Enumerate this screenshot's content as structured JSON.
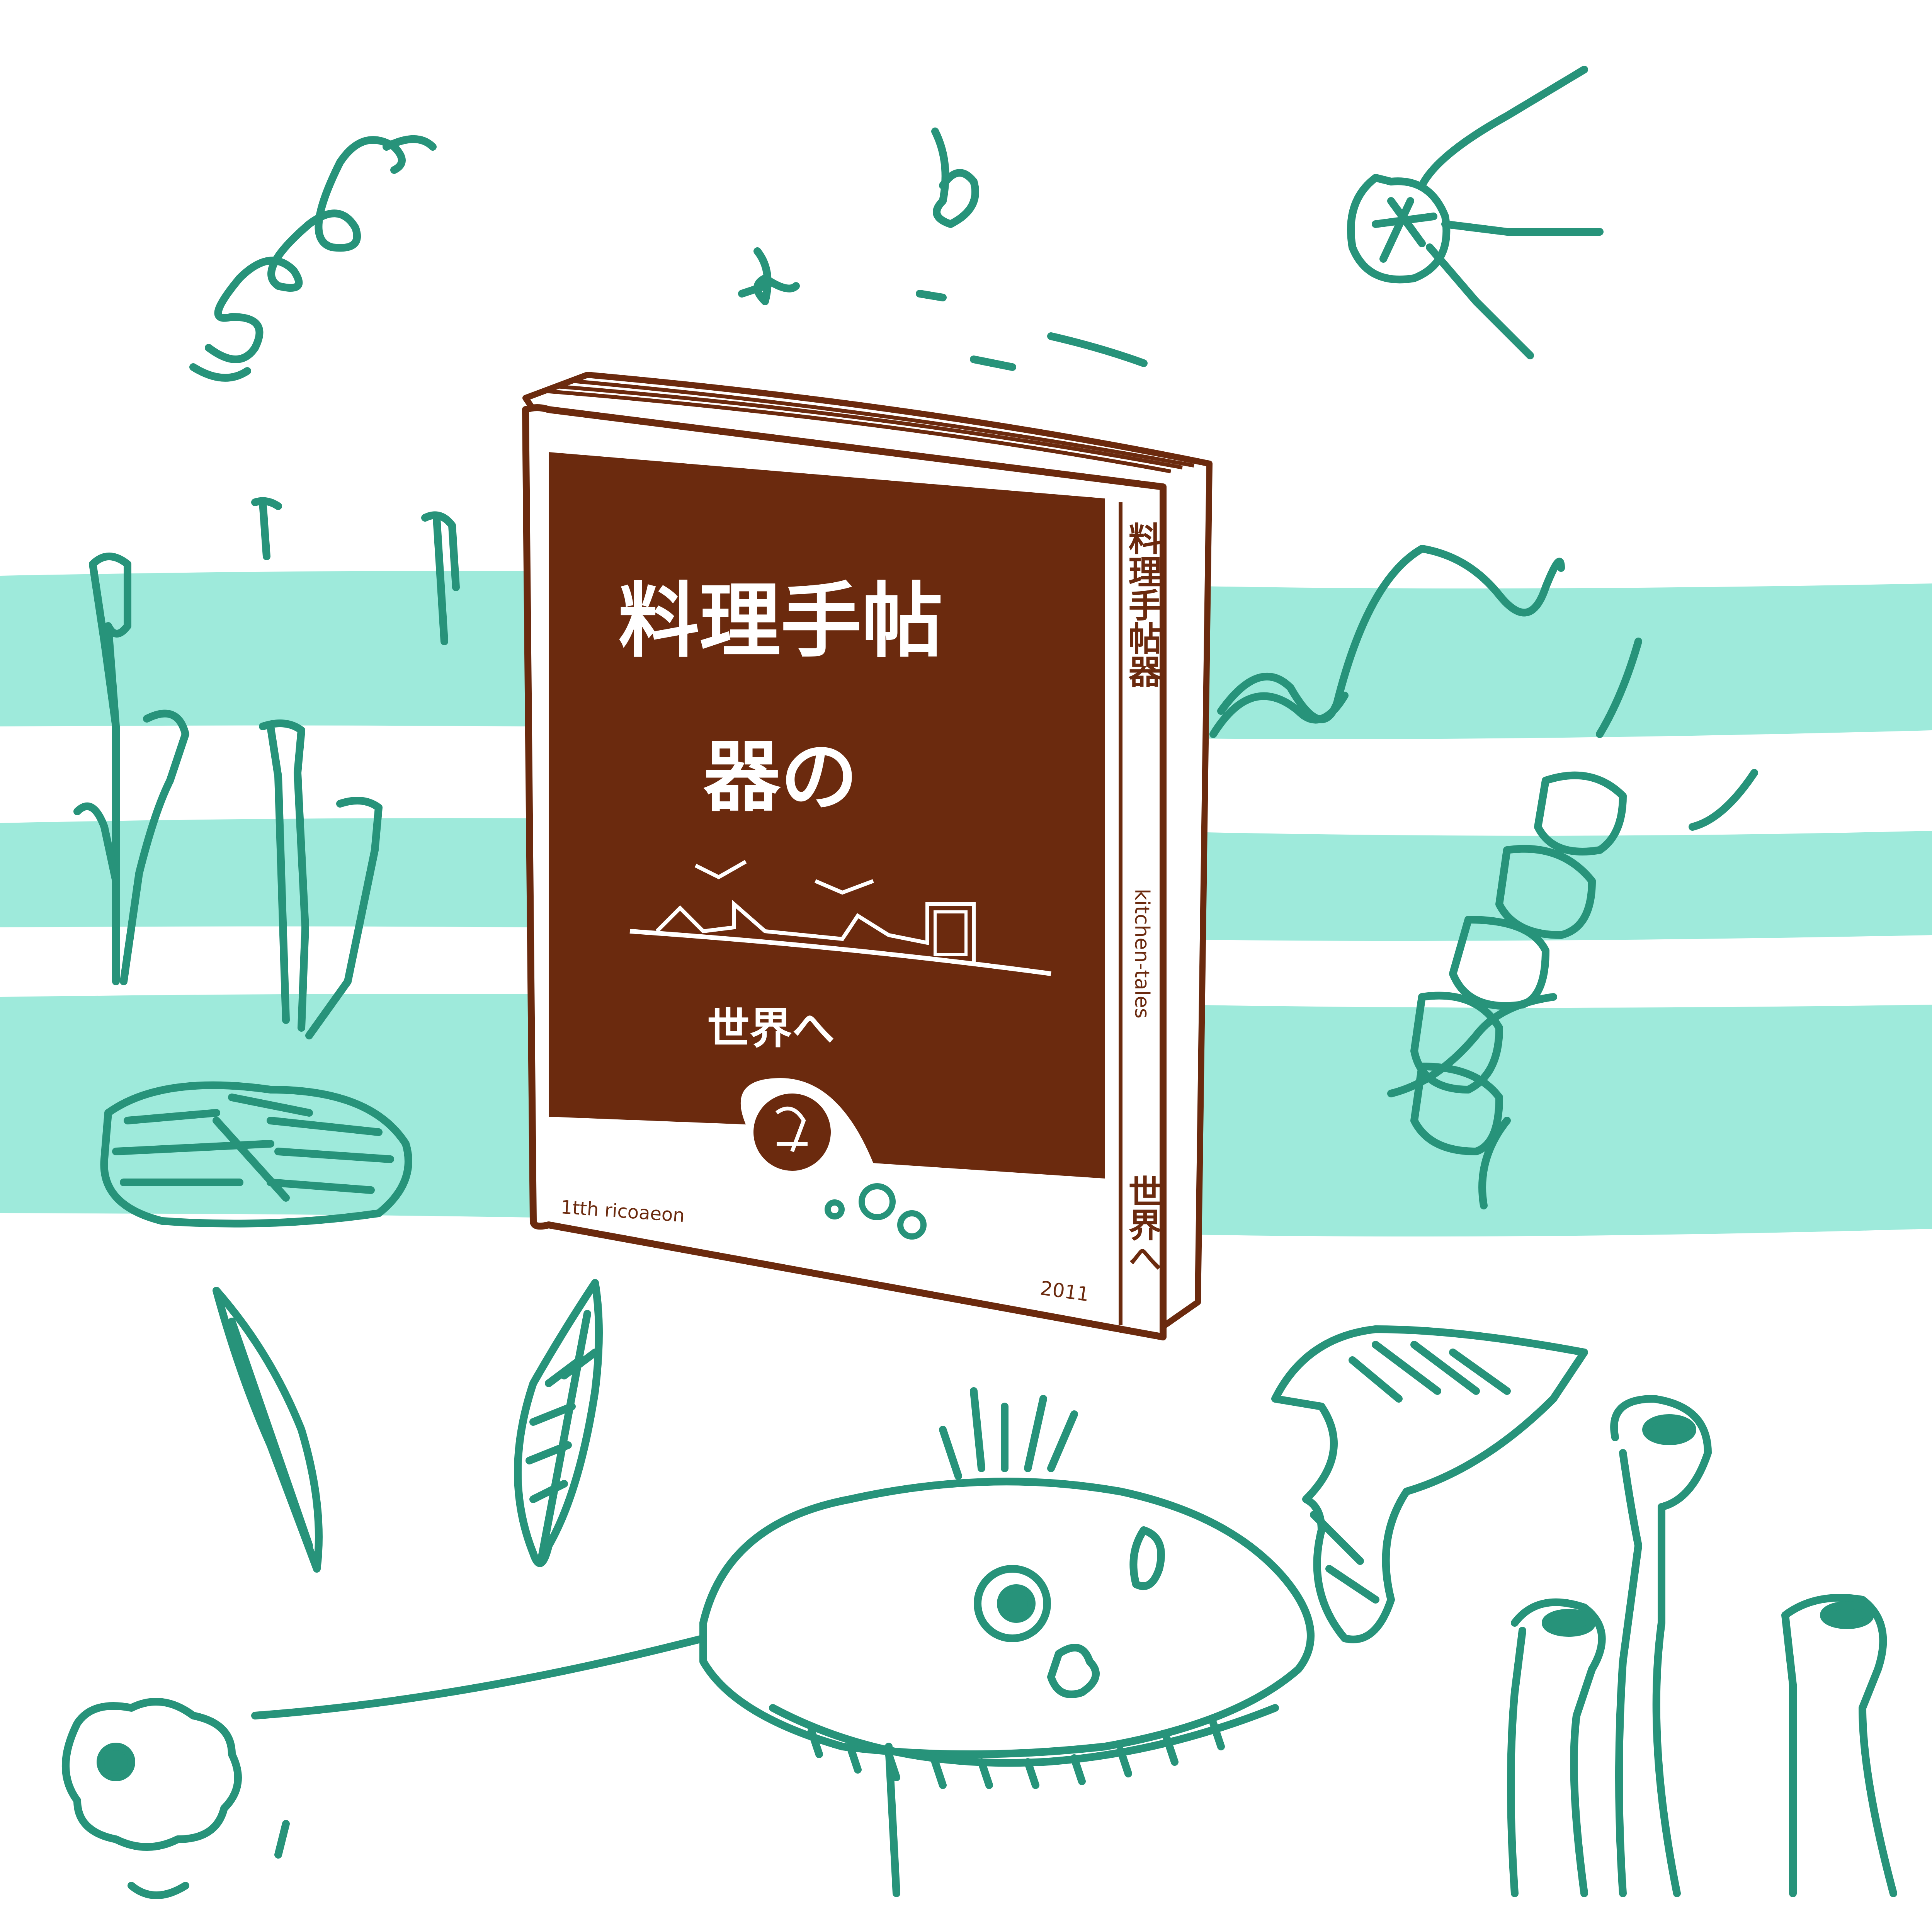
{
  "illustration": {
    "subject": "illustrated book surrounded by hand-drawn food sketches",
    "colors": {
      "background": "#ffffff",
      "stripe": "#9eeadb",
      "line": "#27937a",
      "book_brown": "#6b2a0e",
      "book_paper": "#ffffff"
    }
  },
  "book": {
    "cover_title_line1": "料理手帖",
    "cover_title_line2": "器の",
    "cover_author": "世界へ",
    "spine_title": "料理手帖器",
    "spine_subtitle": "kitchen-tales",
    "spine_author": "世界へ",
    "footer_text": "1tth ricoaeon",
    "year": "2011"
  }
}
